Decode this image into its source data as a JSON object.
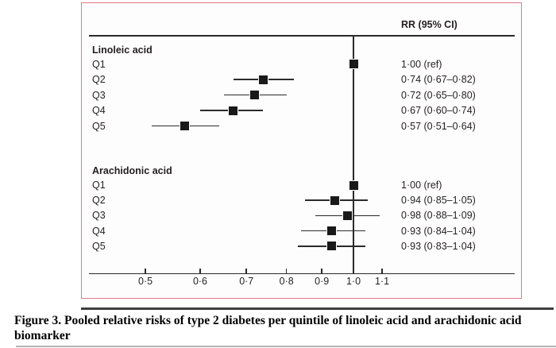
{
  "figure": {
    "caption_lines": [
      "Figure 3. Pooled relative risks of type 2 diabetes per quintile of linoleic acid and arachidonic acid",
      "biomarker"
    ]
  },
  "colors": {
    "panel_border": "#e1798c",
    "ink": "#231f20",
    "marker": "#191919"
  },
  "chart_data": {
    "type": "forest",
    "column_header": "RR (95% CI)",
    "x_axis": {
      "scale": "log",
      "reference_value": 1.0,
      "xlim": [
        0.42,
        1.7
      ],
      "ticks": [
        {
          "value": 0.5,
          "label": "0·5"
        },
        {
          "value": 0.6,
          "label": "0·6"
        },
        {
          "value": 0.7,
          "label": "0·7"
        },
        {
          "value": 0.8,
          "label": "0·8"
        },
        {
          "value": 0.9,
          "label": "0·9"
        },
        {
          "value": 1.0,
          "label": "1·0"
        },
        {
          "value": 1.1,
          "label": "1·1"
        }
      ]
    },
    "groups": [
      {
        "label": "Linoleic acid",
        "rows": [
          {
            "label": "Q1",
            "rr": 1.0,
            "lo": null,
            "hi": null,
            "ci_text": "1·00 (ref)",
            "is_ref": true
          },
          {
            "label": "Q2",
            "rr": 0.74,
            "lo": 0.67,
            "hi": 0.82,
            "ci_text": "0·74 (0·67–0·82)",
            "is_ref": false
          },
          {
            "label": "Q3",
            "rr": 0.72,
            "lo": 0.65,
            "hi": 0.8,
            "ci_text": "0·72 (0·65–0·80)",
            "is_ref": false
          },
          {
            "label": "Q4",
            "rr": 0.67,
            "lo": 0.6,
            "hi": 0.74,
            "ci_text": "0·67 (0·60–0·74)",
            "is_ref": false
          },
          {
            "label": "Q5",
            "rr": 0.57,
            "lo": 0.51,
            "hi": 0.64,
            "ci_text": "0·57 (0·51–0·64)",
            "is_ref": false
          }
        ]
      },
      {
        "label": "Arachidonic acid",
        "rows": [
          {
            "label": "Q1",
            "rr": 1.0,
            "lo": null,
            "hi": null,
            "ci_text": "1·00 (ref)",
            "is_ref": true
          },
          {
            "label": "Q2",
            "rr": 0.94,
            "lo": 0.85,
            "hi": 1.05,
            "ci_text": "0·94 (0·85–1·05)",
            "is_ref": false
          },
          {
            "label": "Q3",
            "rr": 0.98,
            "lo": 0.88,
            "hi": 1.09,
            "ci_text": "0·98 (0·88–1·09)",
            "is_ref": false
          },
          {
            "label": "Q4",
            "rr": 0.93,
            "lo": 0.84,
            "hi": 1.04,
            "ci_text": "0·93 (0·84–1·04)",
            "is_ref": false
          },
          {
            "label": "Q5",
            "rr": 0.93,
            "lo": 0.83,
            "hi": 1.04,
            "ci_text": "0·93 (0·83–1·04)",
            "is_ref": false
          }
        ]
      }
    ]
  }
}
